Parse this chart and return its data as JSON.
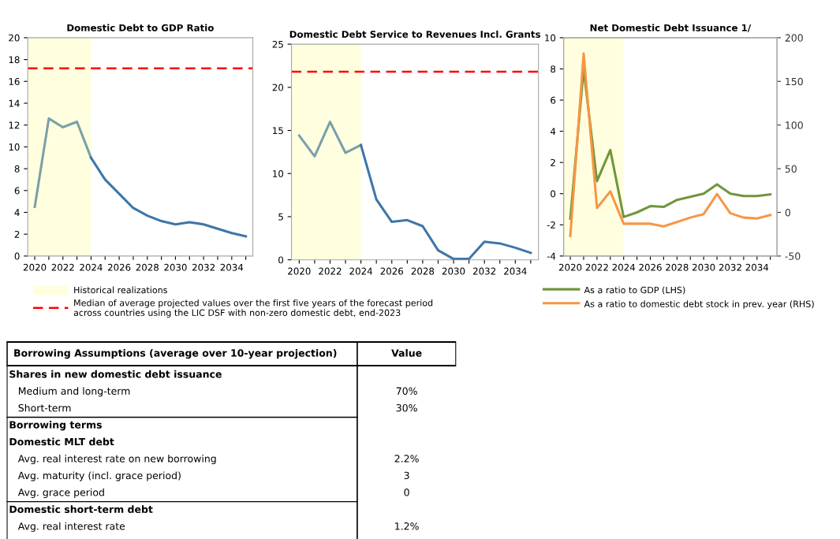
{
  "chart_data": [
    {
      "type": "line",
      "title": "Domestic Debt to GDP Ratio",
      "series": [
        {
          "color": "#7aa0a8",
          "x": [
            2020,
            2021,
            2022,
            2023,
            2024
          ],
          "values": [
            4.5,
            12.6,
            11.8,
            12.3,
            9.0
          ]
        },
        {
          "color": "#3e76a8",
          "x": [
            2024,
            2025,
            2026,
            2027,
            2028,
            2029,
            2030,
            2031,
            2032,
            2033,
            2034,
            2035
          ],
          "values": [
            9.0,
            7.0,
            5.7,
            4.4,
            3.7,
            3.2,
            2.9,
            3.1,
            2.9,
            2.5,
            2.1,
            1.8
          ]
        }
      ],
      "xlim": [
        2019.5,
        2035.5
      ],
      "xticks": [
        2020,
        {
          "value": 2021,
          "label": null
        },
        2022,
        {
          "value": 2023,
          "label": null
        },
        2024,
        {
          "value": 2025,
          "label": null
        },
        2026,
        {
          "value": 2027,
          "label": null
        },
        2028,
        {
          "value": 2029,
          "label": null
        },
        2030,
        {
          "value": 2031,
          "label": null
        },
        2032,
        {
          "value": 2033,
          "label": null
        },
        2034,
        {
          "value": 2035,
          "label": null
        }
      ],
      "ylim": [
        0,
        20
      ],
      "yticks": [
        0,
        2,
        4,
        6,
        8,
        10,
        12,
        14,
        16,
        18,
        20
      ],
      "bands": [
        {
          "axis": "x",
          "from": 2019.5,
          "to": 2024,
          "label": "Historical realizations",
          "color": "#ffffe0"
        }
      ],
      "ref_lines": [
        {
          "axis": "y",
          "value": 17.2,
          "label": "Median of average projected values over the first five years of the forecast period\nacross countries using the LIC DSF with non-zero domestic debt, end-2023",
          "color": "#ff0000",
          "line_style": "dashed"
        }
      ],
      "grid": false,
      "legend": "bottom"
    },
    {
      "type": "line",
      "title": "Domestic Debt Service to Revenues Incl. Grants",
      "series": [
        {
          "color": "#7aa0a8",
          "x": [
            2020,
            2021,
            2022,
            2023,
            2024
          ],
          "values": [
            14.4,
            12.0,
            16.0,
            12.4,
            13.3
          ]
        },
        {
          "color": "#3e76a8",
          "x": [
            2024,
            2025,
            2026,
            2027,
            2028,
            2029,
            2030,
            2031,
            2032,
            2033,
            2034,
            2035
          ],
          "values": [
            13.3,
            7.0,
            4.4,
            4.6,
            3.9,
            1.1,
            0.1,
            0.1,
            2.1,
            1.9,
            1.4,
            0.8
          ]
        }
      ],
      "xlim": [
        2019.5,
        2035.5
      ],
      "xticks": [
        2020,
        {
          "value": 2021,
          "label": null
        },
        2022,
        {
          "value": 2023,
          "label": null
        },
        2024,
        {
          "value": 2025,
          "label": null
        },
        2026,
        {
          "value": 2027,
          "label": null
        },
        2028,
        {
          "value": 2029,
          "label": null
        },
        2030,
        {
          "value": 2031,
          "label": null
        },
        2032,
        {
          "value": 2033,
          "label": null
        },
        2034,
        {
          "value": 2035,
          "label": null
        }
      ],
      "ylim": [
        0,
        25
      ],
      "yticks": [
        0,
        5,
        10,
        15,
        20,
        25
      ],
      "bands": [
        {
          "axis": "x",
          "from": 2019.5,
          "to": 2024,
          "color": "#ffffe0"
        }
      ],
      "ref_lines": [
        {
          "axis": "y",
          "value": 21.8,
          "color": "#ff0000",
          "line_style": "dashed"
        }
      ],
      "grid": false
    },
    {
      "type": "line",
      "title": "Net Domestic Debt Issuance 1/",
      "x": [
        2020,
        2021,
        2022,
        2023,
        2024,
        2025,
        2026,
        2027,
        2028,
        2029,
        2030,
        2031,
        2032,
        2033,
        2034,
        2035
      ],
      "series": [
        {
          "name": "As a ratio to GDP (LHS)",
          "color": "#70963c",
          "values": [
            -1.6,
            8.0,
            0.8,
            2.8,
            -1.5,
            -1.2,
            -0.8,
            -0.85,
            -0.4,
            -0.2,
            0.0,
            0.6,
            0.0,
            -0.15,
            -0.15,
            -0.05
          ]
        },
        {
          "name": "As a ratio to domestic debt stock in prev. year (RHS)",
          "color": "#f79646",
          "axis": "y2",
          "values": [
            -27,
            182,
            5,
            24,
            -13,
            -13,
            -13,
            -16,
            -11,
            -6,
            -2,
            21,
            -1,
            -6,
            -7,
            -3
          ]
        }
      ],
      "xlim": [
        2019.5,
        2035.5
      ],
      "xticks": [
        2020,
        {
          "value": 2021,
          "label": null
        },
        2022,
        {
          "value": 2023,
          "label": null
        },
        2024,
        {
          "value": 2025,
          "label": null
        },
        2026,
        {
          "value": 2027,
          "label": null
        },
        2028,
        {
          "value": 2029,
          "label": null
        },
        2030,
        {
          "value": 2031,
          "label": null
        },
        2032,
        {
          "value": 2033,
          "label": null
        },
        2034,
        {
          "value": 2035,
          "label": null
        }
      ],
      "ylim": [
        -4,
        10
      ],
      "yticks": [
        -4,
        -2,
        0,
        2,
        4,
        6,
        8,
        10
      ],
      "y2lim": [
        -50,
        200
      ],
      "y2ticks": [
        -50,
        0,
        50,
        100,
        150,
        200
      ],
      "bands": [
        {
          "axis": "x",
          "from": 2019.5,
          "to": 2024,
          "color": "#ffffe0"
        }
      ],
      "grid": false,
      "legend": "bottom"
    },
    {
      "type": "other",
      "title": "Borrowing Assumptions (average over 10-year projection)",
      "annotations": [
        "Value"
      ],
      "categories": [
        "Shares in new domestic debt issuance",
        "Medium and long-term",
        "Short-term",
        "Borrowing terms",
        "Domestic MLT debt",
        "Avg. real interest rate on new borrowing",
        "Avg. maturity (incl. grace period)",
        "Avg. grace period",
        "Domestic short-term debt",
        "Avg. real interest rate"
      ],
      "value_labels": [
        null,
        "70%",
        "30%",
        null,
        null,
        "2.2%",
        "3",
        "0",
        null,
        "1.2%"
      ]
    }
  ]
}
